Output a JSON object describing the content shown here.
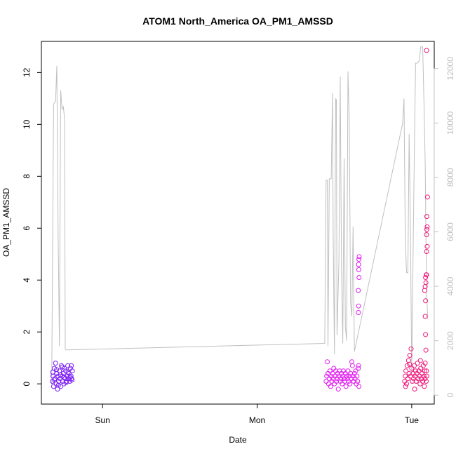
{
  "chart_data": {
    "type": "scatter",
    "title": "ATOM1 North_America OA_PM1_AMSSD",
    "xlabel": "Date",
    "ylabel": "OA_PM1_AMSSD",
    "x_ticks": [
      "Sun",
      "Mon",
      "Tue"
    ],
    "x_tick_hours": [
      0,
      24,
      48
    ],
    "x_range_hours": [
      -9.5,
      51.5
    ],
    "y_ticks": [
      0,
      2,
      4,
      6,
      8,
      10,
      12
    ],
    "ylim": [
      -0.78,
      13.2
    ],
    "y2_ticks": [
      0,
      2000,
      4000,
      6000,
      8000,
      10000,
      12000
    ],
    "y2lim": [
      -330,
      13000
    ],
    "colors": {
      "sun": "#7a1cf5",
      "mon": "#e21cf0",
      "tue": "#f0187a",
      "line": "#c0c0c0"
    },
    "series": [
      {
        "color": "#7a1cf5",
        "points": [
          [
            -7.8,
            0.1
          ],
          [
            -7.7,
            0.3
          ],
          [
            -7.6,
            -0.1
          ],
          [
            -7.5,
            0.6
          ],
          [
            -7.4,
            0.2
          ],
          [
            -7.3,
            0.8
          ],
          [
            -7.2,
            0.0
          ],
          [
            -7.1,
            0.4
          ],
          [
            -7.0,
            -0.2
          ],
          [
            -6.9,
            0.3
          ],
          [
            -6.8,
            0.1
          ],
          [
            -6.7,
            0.5
          ],
          [
            -6.6,
            0.2
          ],
          [
            -6.5,
            -0.1
          ],
          [
            -6.4,
            0.7
          ],
          [
            -6.3,
            0.3
          ],
          [
            -6.2,
            0.1
          ],
          [
            -6.1,
            0.4
          ],
          [
            -6.0,
            0.0
          ],
          [
            -5.9,
            0.6
          ],
          [
            -5.8,
            0.2
          ],
          [
            -5.7,
            0.5
          ],
          [
            -5.6,
            0.1
          ],
          [
            -5.5,
            0.3
          ],
          [
            -5.4,
            0.7
          ],
          [
            -5.3,
            0.2
          ],
          [
            -5.2,
            0.4
          ],
          [
            -5.1,
            0.1
          ],
          [
            -5.0,
            0.6
          ],
          [
            -4.9,
            0.3
          ],
          [
            -4.8,
            0.2
          ],
          [
            -4.7,
            0.5
          ],
          [
            -7.75,
            0.45
          ],
          [
            -7.45,
            0.15
          ],
          [
            -7.15,
            0.55
          ],
          [
            -6.85,
            -0.05
          ],
          [
            -6.55,
            0.35
          ],
          [
            -6.25,
            0.65
          ],
          [
            -5.95,
            0.25
          ],
          [
            -5.65,
            0.05
          ],
          [
            -5.35,
            0.45
          ],
          [
            -5.05,
            0.25
          ],
          [
            -4.85,
            0.7
          ],
          [
            -4.75,
            0.15
          ]
        ]
      },
      {
        "color": "#e21cf0",
        "points": [
          [
            34.7,
            0.1
          ],
          [
            34.8,
            0.3
          ],
          [
            34.9,
            0.85
          ],
          [
            35.0,
            0.4
          ],
          [
            35.1,
            0.0
          ],
          [
            35.2,
            0.2
          ],
          [
            35.3,
            0.5
          ],
          [
            35.4,
            -0.1
          ],
          [
            35.5,
            0.3
          ],
          [
            35.6,
            0.1
          ],
          [
            35.7,
            0.4
          ],
          [
            35.8,
            0.2
          ],
          [
            35.9,
            0.6
          ],
          [
            36.0,
            0.0
          ],
          [
            36.1,
            0.3
          ],
          [
            36.2,
            0.5
          ],
          [
            36.3,
            0.1
          ],
          [
            36.4,
            0.2
          ],
          [
            36.5,
            0.4
          ],
          [
            36.6,
            -0.2
          ],
          [
            36.7,
            0.3
          ],
          [
            36.8,
            0.5
          ],
          [
            36.9,
            0.1
          ],
          [
            37.0,
            0.2
          ],
          [
            37.1,
            0.4
          ],
          [
            37.2,
            0.0
          ],
          [
            37.3,
            0.3
          ],
          [
            37.4,
            0.5
          ],
          [
            37.5,
            0.2
          ],
          [
            37.6,
            0.1
          ],
          [
            37.7,
            0.4
          ],
          [
            37.8,
            -0.1
          ],
          [
            37.9,
            0.3
          ],
          [
            38.0,
            0.2
          ],
          [
            38.1,
            0.5
          ],
          [
            38.2,
            0.1
          ],
          [
            38.3,
            0.3
          ],
          [
            38.4,
            0.0
          ],
          [
            38.5,
            0.4
          ],
          [
            38.6,
            0.2
          ],
          [
            38.7,
            0.85
          ],
          [
            38.8,
            0.7
          ],
          [
            38.9,
            0.3
          ],
          [
            39.0,
            0.1
          ],
          [
            39.1,
            0.4
          ],
          [
            39.2,
            0.2
          ],
          [
            39.3,
            0.5
          ],
          [
            39.4,
            0.0
          ],
          [
            39.5,
            0.3
          ],
          [
            39.6,
            0.1
          ],
          [
            39.7,
            0.6
          ],
          [
            39.75,
            0.7
          ],
          [
            39.8,
            -0.1
          ],
          [
            39.75,
            4.6
          ],
          [
            39.8,
            4.8
          ],
          [
            39.85,
            4.9
          ],
          [
            39.78,
            4.4
          ],
          [
            39.82,
            4.1
          ],
          [
            39.7,
            3.6
          ],
          [
            39.75,
            3.0
          ],
          [
            39.72,
            2.75
          ]
        ]
      },
      {
        "color": "#f0187a",
        "points": [
          [
            46.9,
            0.1
          ],
          [
            47.0,
            0.3
          ],
          [
            47.1,
            0.5
          ],
          [
            47.2,
            0.0
          ],
          [
            47.3,
            0.7
          ],
          [
            47.4,
            0.2
          ],
          [
            47.5,
            0.9
          ],
          [
            47.6,
            0.4
          ],
          [
            47.7,
            1.1
          ],
          [
            47.8,
            0.3
          ],
          [
            47.9,
            1.35
          ],
          [
            48.0,
            0.6
          ],
          [
            48.1,
            0.1
          ],
          [
            48.2,
            0.4
          ],
          [
            48.3,
            0.2
          ],
          [
            48.4,
            0.7
          ],
          [
            48.5,
            0.3
          ],
          [
            48.6,
            0.5
          ],
          [
            48.7,
            0.1
          ],
          [
            48.8,
            0.4
          ],
          [
            48.9,
            0.8
          ],
          [
            49.0,
            0.2
          ],
          [
            49.1,
            0.5
          ],
          [
            49.2,
            0.3
          ],
          [
            49.3,
            0.0
          ],
          [
            49.4,
            0.6
          ],
          [
            49.5,
            0.2
          ],
          [
            49.6,
            0.4
          ],
          [
            49.7,
            0.1
          ],
          [
            49.8,
            0.7
          ],
          [
            49.9,
            0.3
          ],
          [
            50.0,
            0.5
          ],
          [
            50.05,
            0.2
          ],
          [
            50.1,
            0.8
          ],
          [
            50.15,
            1.9
          ],
          [
            50.2,
            1.3
          ],
          [
            50.25,
            0.1
          ],
          [
            50.3,
            0.5
          ],
          [
            50.35,
            0.3
          ],
          [
            50.1,
            2.6
          ],
          [
            50.15,
            3.2
          ],
          [
            50.0,
            3.6
          ],
          [
            50.1,
            3.75
          ],
          [
            50.2,
            3.9
          ],
          [
            50.15,
            4.1
          ],
          [
            50.25,
            4.2
          ],
          [
            50.3,
            4.2
          ],
          [
            50.3,
            5.1
          ],
          [
            50.4,
            5.3
          ],
          [
            50.3,
            5.75
          ],
          [
            50.35,
            5.95
          ],
          [
            50.4,
            6.05
          ],
          [
            50.35,
            6.45
          ],
          [
            50.45,
            7.2
          ],
          [
            50.3,
            12.85
          ],
          [
            47.05,
            -0.1
          ],
          [
            47.65,
            0.75
          ],
          [
            48.45,
            -0.2
          ],
          [
            49.35,
            0.9
          ],
          [
            49.95,
            -0.1
          ]
        ]
      }
    ],
    "line_series": {
      "axis": "right",
      "color": "#c0c0c0",
      "points": [
        [
          -7.9,
          400
        ],
        [
          -7.6,
          10700
        ],
        [
          -7.3,
          10800
        ],
        [
          -7.1,
          12100
        ],
        [
          -6.9,
          5800
        ],
        [
          -6.7,
          1800
        ],
        [
          -6.5,
          11200
        ],
        [
          -6.3,
          10500
        ],
        [
          -6.1,
          10600
        ],
        [
          -5.9,
          10200
        ],
        [
          -5.8,
          1700
        ],
        [
          -5.7,
          1660
        ],
        [
          34.5,
          1900
        ],
        [
          34.7,
          7900
        ],
        [
          34.9,
          7900
        ],
        [
          35.0,
          1800
        ],
        [
          35.2,
          7950
        ],
        [
          35.5,
          7950
        ],
        [
          35.7,
          11100
        ],
        [
          35.8,
          6000
        ],
        [
          36.0,
          1500
        ],
        [
          36.2,
          10900
        ],
        [
          36.3,
          10850
        ],
        [
          36.4,
          2200
        ],
        [
          36.7,
          4900
        ],
        [
          36.9,
          11700
        ],
        [
          37.1,
          4600
        ],
        [
          37.3,
          1900
        ],
        [
          37.5,
          8700
        ],
        [
          37.7,
          2500
        ],
        [
          37.9,
          2000
        ],
        [
          38.1,
          11900
        ],
        [
          38.3,
          10200
        ],
        [
          38.5,
          3400
        ],
        [
          38.7,
          2900
        ],
        [
          38.9,
          6200
        ],
        [
          39.0,
          3800
        ],
        [
          39.1,
          1600
        ],
        [
          46.6,
          10000
        ],
        [
          46.8,
          10900
        ],
        [
          47.0,
          5800
        ],
        [
          47.2,
          4500
        ],
        [
          47.4,
          4500
        ],
        [
          47.6,
          9600
        ],
        [
          47.8,
          6200
        ],
        [
          48.0,
          800
        ],
        [
          48.2,
          4900
        ],
        [
          48.4,
          8700
        ],
        [
          48.6,
          12200
        ],
        [
          48.9,
          12200
        ],
        [
          49.2,
          12300
        ],
        [
          49.4,
          12800
        ],
        [
          49.7,
          12800
        ],
        [
          49.9,
          10800
        ],
        [
          50.1,
          8500
        ],
        [
          50.3,
          3800
        ],
        [
          50.5,
          2800
        ]
      ]
    }
  }
}
